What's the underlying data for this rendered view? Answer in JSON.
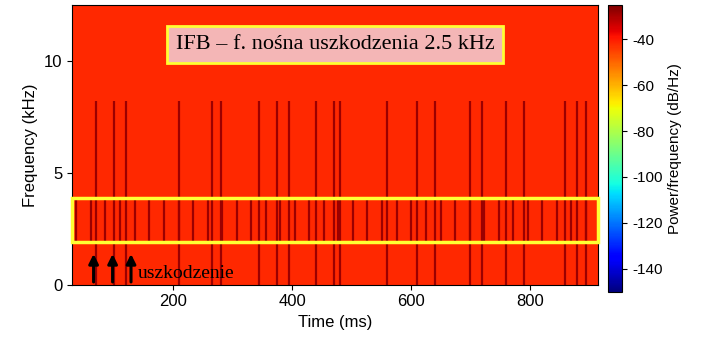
{
  "chart_data": {
    "type": "spectrogram",
    "title": "IFB – f. nośna uszkodzenia 2.5 kHz",
    "xlabel": "Time (ms)",
    "ylabel": "Frequency (kHz)",
    "colorbar_label": "Power/frequency (dB/Hz)",
    "xlim": [
      30,
      915
    ],
    "xticks": [
      200,
      400,
      600,
      800
    ],
    "ylim": [
      0,
      12.5
    ],
    "yticks": [
      0,
      5,
      10
    ],
    "clim": [
      -150,
      -25
    ],
    "cticks": [
      -140,
      -120,
      -100,
      -80,
      -60,
      -40
    ],
    "background_level": -42,
    "impulse_level": -28,
    "impulses": {
      "times": [
        70,
        100,
        120,
        210,
        265,
        280,
        345,
        375,
        395,
        440,
        470,
        480,
        560,
        610,
        640,
        700,
        720,
        760,
        790,
        860,
        880,
        895
      ],
      "freq_range": [
        0,
        8.2
      ]
    },
    "fault_impulses": {
      "times": [
        37,
        62,
        86,
        111,
        135,
        160,
        184,
        209,
        233,
        258,
        282,
        307,
        331,
        356,
        380,
        405,
        429,
        454,
        478,
        503,
        527,
        552,
        576,
        601,
        625,
        650,
        674,
        699,
        723,
        748,
        772,
        797,
        821,
        846,
        870,
        895
      ],
      "freq_range": [
        1.9,
        3.9
      ]
    },
    "highlight_band": [
      1.9,
      3.9
    ],
    "annotation": {
      "text": "uszkodzenie",
      "arrow_times": [
        66,
        98,
        129
      ]
    }
  }
}
